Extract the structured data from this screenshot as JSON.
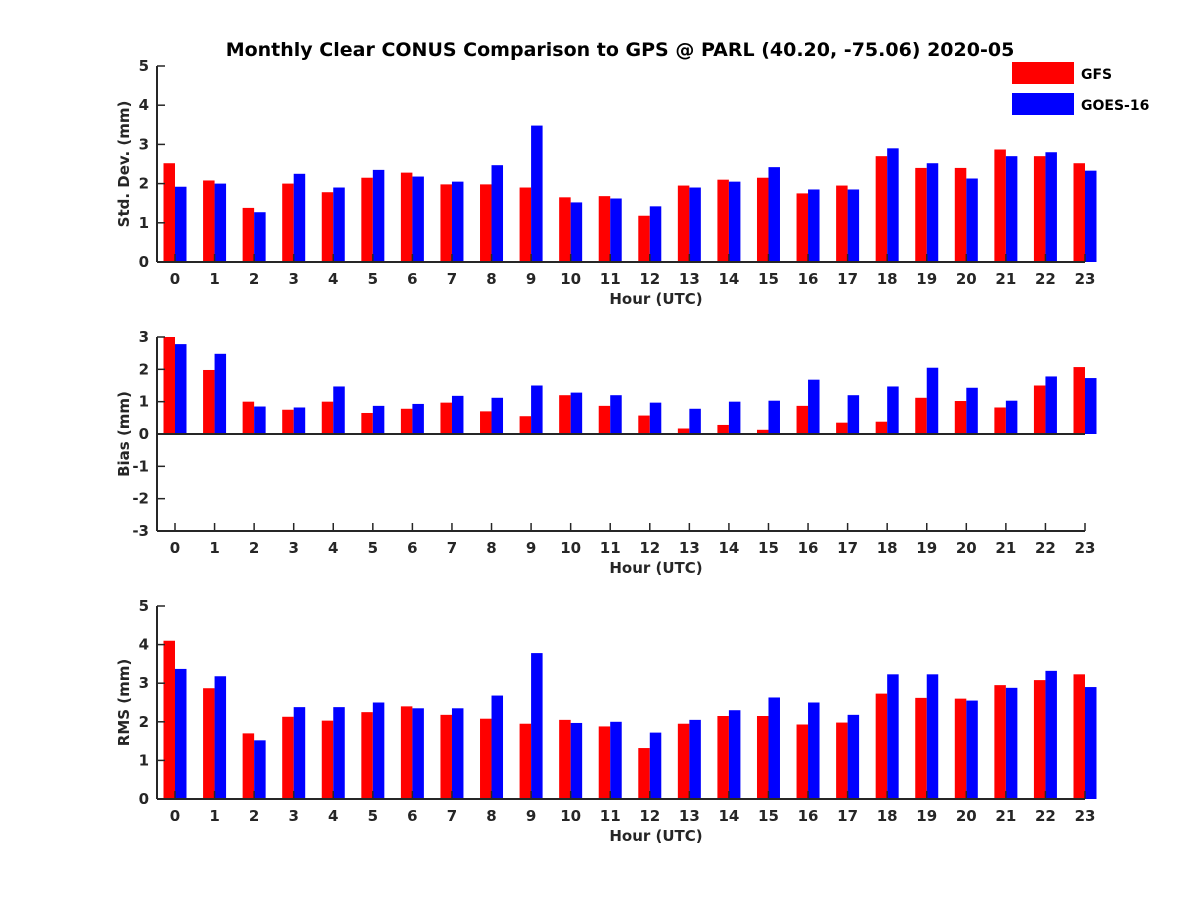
{
  "title": "Monthly Clear CONUS Comparison to GPS @ PARL (40.20, -75.06) 2020-05",
  "legend": [
    {
      "name": "GFS",
      "color": "#ff0000"
    },
    {
      "name": "GOES-16",
      "color": "#0000ff"
    }
  ],
  "chart_data": [
    {
      "type": "bar",
      "ylabel": "Std. Dev. (mm)",
      "xlabel": "Hour (UTC)",
      "ylim": [
        0,
        5
      ],
      "yticks": [
        0,
        1,
        2,
        3,
        4,
        5
      ],
      "categories": [
        "0",
        "1",
        "2",
        "3",
        "4",
        "5",
        "6",
        "7",
        "8",
        "9",
        "10",
        "11",
        "12",
        "13",
        "14",
        "15",
        "16",
        "17",
        "18",
        "19",
        "20",
        "21",
        "22",
        "23"
      ],
      "series": [
        {
          "name": "GFS",
          "color": "#ff0000",
          "values": [
            2.52,
            2.08,
            1.38,
            2.0,
            1.78,
            2.15,
            2.28,
            1.98,
            1.98,
            1.9,
            1.65,
            1.68,
            1.18,
            1.95,
            2.1,
            2.15,
            1.75,
            1.95,
            2.7,
            2.4,
            2.4,
            2.87,
            2.7,
            2.52
          ]
        },
        {
          "name": "GOES-16",
          "color": "#0000ff",
          "values": [
            1.92,
            2.0,
            1.27,
            2.25,
            1.9,
            2.35,
            2.18,
            2.05,
            2.47,
            3.48,
            1.52,
            1.62,
            1.42,
            1.9,
            2.05,
            2.42,
            1.85,
            1.85,
            2.9,
            2.52,
            2.13,
            2.7,
            2.8,
            2.33
          ]
        }
      ]
    },
    {
      "type": "bar",
      "ylabel": "Bias (mm)",
      "xlabel": "Hour (UTC)",
      "ylim": [
        -3,
        3
      ],
      "yticks": [
        -3,
        -2,
        -1,
        0,
        1,
        2,
        3
      ],
      "categories": [
        "0",
        "1",
        "2",
        "3",
        "4",
        "5",
        "6",
        "7",
        "8",
        "9",
        "10",
        "11",
        "12",
        "13",
        "14",
        "15",
        "16",
        "17",
        "18",
        "19",
        "20",
        "21",
        "22",
        "23"
      ],
      "series": [
        {
          "name": "GFS",
          "color": "#ff0000",
          "values": [
            3.0,
            1.98,
            1.0,
            0.75,
            1.0,
            0.65,
            0.78,
            0.97,
            0.7,
            0.55,
            1.2,
            0.87,
            0.57,
            0.17,
            0.28,
            0.13,
            0.87,
            0.35,
            0.38,
            1.12,
            1.02,
            0.82,
            1.5,
            2.07
          ]
        },
        {
          "name": "GOES-16",
          "color": "#0000ff",
          "values": [
            2.78,
            2.48,
            0.85,
            0.82,
            1.47,
            0.87,
            0.93,
            1.18,
            1.12,
            1.5,
            1.28,
            1.2,
            0.97,
            0.78,
            1.0,
            1.03,
            1.68,
            1.2,
            1.47,
            2.05,
            1.43,
            1.03,
            1.78,
            1.73
          ]
        }
      ]
    },
    {
      "type": "bar",
      "ylabel": "RMS (mm)",
      "xlabel": "Hour (UTC)",
      "ylim": [
        0,
        5
      ],
      "yticks": [
        0,
        1,
        2,
        3,
        4,
        5
      ],
      "categories": [
        "0",
        "1",
        "2",
        "3",
        "4",
        "5",
        "6",
        "7",
        "8",
        "9",
        "10",
        "11",
        "12",
        "13",
        "14",
        "15",
        "16",
        "17",
        "18",
        "19",
        "20",
        "21",
        "22",
        "23"
      ],
      "series": [
        {
          "name": "GFS",
          "color": "#ff0000",
          "values": [
            4.1,
            2.87,
            1.7,
            2.13,
            2.03,
            2.25,
            2.4,
            2.18,
            2.08,
            1.95,
            2.05,
            1.88,
            1.32,
            1.95,
            2.15,
            2.15,
            1.93,
            1.98,
            2.73,
            2.62,
            2.6,
            2.95,
            3.08,
            3.23
          ]
        },
        {
          "name": "GOES-16",
          "color": "#0000ff",
          "values": [
            3.37,
            3.18,
            1.52,
            2.38,
            2.38,
            2.5,
            2.35,
            2.35,
            2.68,
            3.78,
            1.97,
            2.0,
            1.72,
            2.05,
            2.3,
            2.63,
            2.5,
            2.18,
            3.23,
            3.23,
            2.55,
            2.88,
            3.32,
            2.9
          ]
        }
      ]
    }
  ]
}
